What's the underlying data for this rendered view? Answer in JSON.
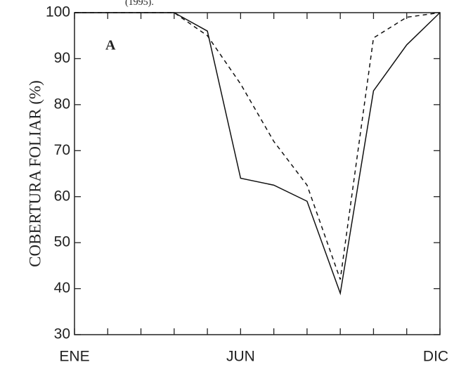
{
  "chart_data": {
    "type": "line",
    "ylabel": "COBERTURA FOLIAR (%)",
    "annotations": [
      "(1995).",
      "A"
    ],
    "categories": [
      "ENE",
      null,
      null,
      null,
      null,
      "JUN",
      null,
      null,
      null,
      null,
      null,
      "DIC"
    ],
    "series": [
      {
        "color": "#111111",
        "linestyle": "solid",
        "values": [
          100,
          100,
          100,
          100,
          96,
          64,
          62.5,
          59,
          39,
          83,
          93,
          100
        ]
      },
      {
        "color": "#111111",
        "linestyle": "dashed",
        "values": [
          100,
          100,
          100,
          100,
          95,
          84.5,
          72,
          62.5,
          42,
          94.5,
          99,
          100
        ]
      }
    ],
    "ylim": [
      30,
      100
    ],
    "yticks": [
      30,
      40,
      50,
      60,
      70,
      80,
      90,
      100
    ],
    "grid": false
  }
}
